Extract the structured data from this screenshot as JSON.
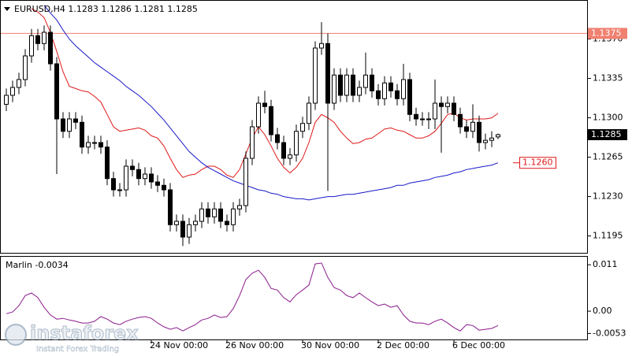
{
  "chart_data": [
    {
      "type": "candlestick",
      "title": "EURUSD,H4",
      "categories": [
        null,
        null,
        null,
        null,
        null,
        null,
        null,
        null,
        null,
        null,
        null,
        null,
        null,
        null,
        null,
        null,
        null,
        null,
        null,
        null,
        null,
        null,
        null,
        "24 Nov 00:00",
        null,
        null,
        null,
        null,
        null,
        null,
        null,
        null,
        null,
        null,
        null,
        "26 Nov 00:00",
        null,
        null,
        null,
        null,
        null,
        null,
        null,
        null,
        null,
        null,
        null,
        "30 Nov 00:00",
        null,
        null,
        null,
        null,
        null,
        null,
        null,
        null,
        null,
        null,
        null,
        "2 Dec 00:00",
        null,
        null,
        null,
        null,
        null,
        null,
        null,
        null,
        null,
        null,
        null,
        "6 Dec 00:00",
        null,
        null,
        null,
        null,
        null,
        null,
        null
      ],
      "open": [
        1.1312,
        1.132,
        1.1327,
        1.1334,
        1.1355,
        1.1373,
        1.1366,
        1.1376,
        1.1348,
        1.1299,
        1.1288,
        1.1299,
        1.1296,
        1.1274,
        1.1278,
        1.1278,
        1.1274,
        1.1246,
        1.1236,
        1.1236,
        1.1257,
        1.1254,
        1.1246,
        1.125,
        1.1243,
        1.124,
        1.1236,
        1.1205,
        1.1208,
        1.1194,
        1.1205,
        1.1208,
        1.1219,
        1.1212,
        1.1219,
        1.1208,
        1.1205,
        1.1219,
        1.1222,
        1.1264,
        1.1292,
        1.1313,
        1.131,
        1.1285,
        1.1278,
        1.1264,
        1.1267,
        1.1288,
        1.1295,
        1.1313,
        1.1362,
        1.1366,
        1.1313,
        1.1338,
        1.132,
        1.1338,
        1.132,
        1.1327,
        1.1338,
        1.1324,
        1.1317,
        1.1331,
        1.1324,
        1.1317,
        1.1334,
        1.1303,
        1.1299,
        1.1299,
        1.1299,
        1.1313,
        1.131,
        1.1313,
        1.1303,
        1.1292,
        1.1288,
        1.1296,
        1.1278,
        1.128,
        1.1283
      ],
      "high": [
        1.1326,
        1.1333,
        1.134,
        1.1361,
        1.1379,
        1.1379,
        1.1382,
        1.1382,
        1.1354,
        1.1305,
        1.1305,
        1.1305,
        1.1302,
        1.1284,
        1.1284,
        1.1284,
        1.128,
        1.1252,
        1.1242,
        1.1263,
        1.1263,
        1.126,
        1.1256,
        1.1256,
        1.1249,
        1.1246,
        1.1242,
        1.1214,
        1.1214,
        1.1211,
        1.1214,
        1.1225,
        1.1225,
        1.1225,
        1.1225,
        1.1214,
        1.1225,
        1.1228,
        1.127,
        1.1298,
        1.1319,
        1.1324,
        1.1316,
        1.1291,
        1.1284,
        1.1273,
        1.1294,
        1.1301,
        1.1319,
        1.1368,
        1.1385,
        1.1375,
        1.1344,
        1.1344,
        1.1344,
        1.1344,
        1.1333,
        1.1358,
        1.1344,
        1.133,
        1.1337,
        1.1337,
        1.133,
        1.1348,
        1.134,
        1.1309,
        1.1305,
        1.1305,
        1.1334,
        1.1319,
        1.1319,
        1.1319,
        1.1309,
        1.1298,
        1.1312,
        1.1302,
        1.1286,
        1.1288,
        1.1286
      ],
      "low": [
        1.1306,
        1.1314,
        1.1321,
        1.1328,
        1.1349,
        1.136,
        1.136,
        1.1342,
        1.125,
        1.1282,
        1.1282,
        1.129,
        1.1268,
        1.1268,
        1.1272,
        1.1268,
        1.124,
        1.123,
        1.123,
        1.123,
        1.1248,
        1.124,
        1.124,
        1.1237,
        1.1234,
        1.123,
        1.1199,
        1.1199,
        1.1186,
        1.1188,
        1.1199,
        1.1202,
        1.1206,
        1.1206,
        1.1202,
        1.1199,
        1.1199,
        1.1213,
        1.1216,
        1.1258,
        1.1286,
        1.1304,
        1.1279,
        1.1272,
        1.1258,
        1.1258,
        1.1261,
        1.1282,
        1.1289,
        1.1307,
        1.1356,
        1.1235,
        1.1307,
        1.1314,
        1.1314,
        1.1314,
        1.1314,
        1.1321,
        1.1318,
        1.1311,
        1.1311,
        1.1318,
        1.1311,
        1.1311,
        1.1297,
        1.1293,
        1.1293,
        1.129,
        1.129,
        1.1269,
        1.1304,
        1.1297,
        1.1286,
        1.1282,
        1.1282,
        1.127,
        1.1272,
        1.1274,
        1.1281
      ],
      "close": [
        1.132,
        1.1327,
        1.1334,
        1.1355,
        1.1373,
        1.1366,
        1.1376,
        1.1348,
        1.1299,
        1.1288,
        1.1299,
        1.1296,
        1.1274,
        1.1278,
        1.1278,
        1.1274,
        1.1246,
        1.1236,
        1.1236,
        1.1257,
        1.1254,
        1.1246,
        1.125,
        1.1243,
        1.124,
        1.1236,
        1.1205,
        1.1208,
        1.1194,
        1.1205,
        1.1208,
        1.1219,
        1.1212,
        1.1219,
        1.1208,
        1.1205,
        1.1219,
        1.1222,
        1.1264,
        1.1292,
        1.1313,
        1.131,
        1.1285,
        1.1278,
        1.1264,
        1.1267,
        1.1288,
        1.1295,
        1.1313,
        1.1362,
        1.1366,
        1.1313,
        1.1338,
        1.132,
        1.1338,
        1.132,
        1.1327,
        1.1338,
        1.1324,
        1.1317,
        1.1331,
        1.1324,
        1.1317,
        1.1334,
        1.1303,
        1.1299,
        1.1299,
        1.1299,
        1.1313,
        1.131,
        1.1313,
        1.1303,
        1.1292,
        1.1288,
        1.1296,
        1.1278,
        1.128,
        1.1282,
        1.1285
      ],
      "series": [
        {
          "color": "#e01818",
          "values": [
            null,
            null,
            null,
            null,
            1.1397,
            1.1394,
            1.1389,
            1.1376,
            1.1359,
            1.1341,
            1.1328,
            1.1326,
            1.1324,
            1.1323,
            1.1319,
            1.1314,
            1.1303,
            1.1292,
            1.1288,
            1.1289,
            1.129,
            1.1291,
            1.1289,
            1.1284,
            1.1282,
            1.1275,
            1.1264,
            1.1254,
            1.1247,
            1.1249,
            1.125,
            1.1254,
            1.1257,
            1.1257,
            1.1254,
            1.1249,
            1.1247,
            1.1254,
            1.1268,
            1.1282,
            1.1292,
            1.1285,
            1.1275,
            1.1264,
            1.1256,
            1.1251,
            1.1256,
            1.1264,
            1.1278,
            1.1296,
            1.1303,
            1.13,
            1.1296,
            1.1288,
            1.1282,
            1.1277,
            1.1278,
            1.1281,
            1.1282,
            1.1286,
            1.129,
            1.1291,
            1.1289,
            1.1288,
            1.1285,
            1.1282,
            1.1282,
            1.1284,
            1.1288,
            1.1295,
            1.1303,
            1.1304,
            1.13,
            1.1298,
            1.1299,
            1.1299,
            1.1299,
            1.13,
            1.1304
          ]
        },
        {
          "color": "#1818c8",
          "values": [
            null,
            null,
            null,
            null,
            null,
            null,
            1.14,
            1.1393,
            1.1387,
            1.1378,
            1.137,
            1.1364,
            1.1359,
            1.1354,
            1.1349,
            1.1345,
            1.1341,
            1.1337,
            1.1333,
            1.1328,
            1.1324,
            1.132,
            1.1315,
            1.131,
            1.1304,
            1.1298,
            1.1291,
            1.1284,
            1.1277,
            1.127,
            1.1265,
            1.126,
            1.1256,
            1.1253,
            1.125,
            1.1247,
            1.1244,
            1.1242,
            1.124,
            1.1238,
            1.1236,
            1.1235,
            1.1233,
            1.1232,
            1.123,
            1.1229,
            1.1228,
            1.1228,
            1.1227,
            1.1228,
            1.1229,
            1.123,
            1.123,
            1.1231,
            1.1232,
            1.1232,
            1.1233,
            1.1234,
            1.1235,
            1.1236,
            1.1237,
            1.1238,
            1.124,
            1.124,
            1.1242,
            1.1243,
            1.1244,
            1.1245,
            1.1247,
            1.1248,
            1.1249,
            1.1251,
            1.1252,
            1.1254,
            1.1255,
            1.1256,
            1.1257,
            1.1258,
            1.126
          ],
          "end_label": {
            "value": 1.126,
            "label": "1.1260"
          }
        }
      ],
      "level": {
        "value": 1.1375,
        "color": "#f08070"
      },
      "ylim": [
        1.118,
        1.1404
      ],
      "yticks": [
        {
          "value": 1.137,
          "label": "1.1370"
        },
        1.1335,
        {
          "value": 1.13,
          "label": "1.1300"
        },
        1.1265,
        {
          "value": 1.123,
          "label": "1.1230"
        },
        1.1195
      ],
      "bull_color": "#ffffff",
      "bear_color": "#000000"
    },
    {
      "type": "line",
      "series": [
        {
          "name": "Marlin",
          "color": "#8b1a8b",
          "values": [
            -0.0006,
            -0.0002,
            0.0013,
            0.0037,
            0.0043,
            0.0032,
            0.0009,
            -0.0009,
            -0.0019,
            -0.0017,
            -0.0021,
            -0.0024,
            -0.0028,
            -0.0028,
            -0.0024,
            -0.0013,
            -0.0019,
            -0.0028,
            -0.0032,
            -0.0024,
            -0.0019,
            -0.0015,
            -0.0013,
            -0.0017,
            -0.0028,
            -0.0037,
            -0.0043,
            -0.0039,
            -0.0047,
            -0.0039,
            -0.0032,
            -0.0021,
            -0.0017,
            -0.0009,
            -0.0015,
            -0.0013,
            0.0006,
            0.0037,
            0.0075,
            0.009,
            0.0097,
            0.008,
            0.0054,
            0.005,
            0.0032,
            0.0022,
            0.0039,
            0.005,
            0.0062,
            0.0112,
            0.0114,
            0.008,
            0.0056,
            0.005,
            0.0037,
            0.0032,
            0.0043,
            0.0032,
            0.0022,
            0.0013,
            0.0017,
            0.0009,
            0.0013,
            -0.0009,
            -0.0024,
            -0.0028,
            -0.0028,
            -0.0032,
            -0.0024,
            -0.0019,
            -0.0028,
            -0.0039,
            -0.0047,
            -0.0032,
            -0.0034,
            -0.0045,
            -0.0043,
            -0.0041,
            -0.0034
          ]
        }
      ],
      "ylim": [
        -0.0069,
        0.0129
      ],
      "yticks": [
        0.011,
        {
          "value": 0,
          "label": "0.00"
        },
        -0.0053
      ]
    }
  ],
  "watermark": {
    "brand": "instaforex",
    "tagline": "Instant Forex Trading"
  }
}
